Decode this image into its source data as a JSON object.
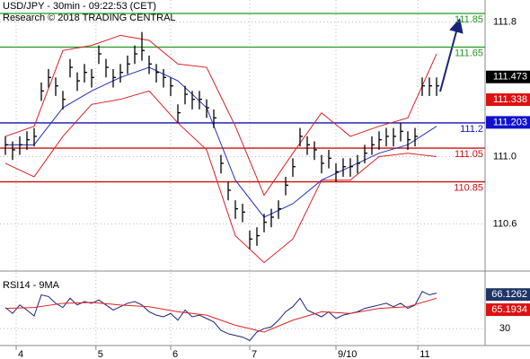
{
  "chart_data": [
    {
      "type": "ohlc",
      "title": "USD/JPY - 30min - 09:22:53 (CET)",
      "subtitle": "Research © 2018 TRADING CENTRAL",
      "color": "#000000",
      "x": [
        0,
        1,
        2,
        3,
        4,
        5,
        6,
        7,
        8,
        9,
        10,
        11,
        12,
        13,
        14,
        15,
        16,
        17,
        18,
        19,
        20,
        21,
        22,
        23,
        24,
        25,
        26,
        27,
        28,
        29,
        30,
        31,
        32,
        33,
        34,
        35,
        36,
        37,
        38,
        39,
        40,
        41,
        42,
        43,
        44,
        45,
        46,
        47,
        48,
        49,
        50,
        51,
        52,
        53,
        54,
        55,
        56,
        57,
        58,
        59,
        60
      ],
      "high": [
        111.12,
        111.09,
        111.12,
        111.15,
        111.17,
        111.44,
        111.52,
        111.47,
        111.39,
        111.58,
        111.5,
        111.55,
        111.52,
        111.66,
        111.58,
        111.52,
        111.55,
        111.6,
        111.66,
        111.74,
        111.6,
        111.55,
        111.52,
        111.47,
        111.31,
        111.42,
        111.39,
        111.39,
        111.34,
        111.28,
        111.01,
        110.85,
        110.74,
        110.72,
        110.56,
        110.58,
        110.66,
        110.69,
        110.74,
        110.88,
        110.99,
        111.17,
        111.12,
        111.09,
        111.01,
        111.04,
        110.96,
        110.99,
        110.99,
        111.01,
        111.07,
        111.12,
        111.15,
        111.17,
        111.17,
        111.2,
        111.15,
        111.17,
        111.47,
        111.47,
        111.47
      ],
      "low": [
        111.01,
        110.98,
        111.01,
        111.04,
        111.06,
        111.33,
        111.41,
        111.36,
        111.28,
        111.47,
        111.39,
        111.44,
        111.41,
        111.55,
        111.47,
        111.41,
        111.44,
        111.49,
        111.55,
        111.57,
        111.49,
        111.44,
        111.41,
        111.36,
        111.2,
        111.31,
        111.28,
        111.28,
        111.23,
        111.17,
        110.9,
        110.74,
        110.63,
        110.61,
        110.45,
        110.47,
        110.55,
        110.58,
        110.63,
        110.77,
        110.88,
        111.06,
        111.01,
        110.98,
        110.9,
        110.93,
        110.85,
        110.88,
        110.88,
        110.9,
        110.96,
        111.01,
        111.04,
        111.06,
        111.06,
        111.09,
        111.04,
        111.06,
        111.36,
        111.36,
        111.36
      ],
      "close": [
        111.07,
        111.04,
        111.07,
        111.1,
        111.12,
        111.39,
        111.47,
        111.42,
        111.34,
        111.53,
        111.45,
        111.5,
        111.47,
        111.61,
        111.53,
        111.47,
        111.5,
        111.55,
        111.61,
        111.63,
        111.55,
        111.5,
        111.47,
        111.42,
        111.26,
        111.37,
        111.34,
        111.34,
        111.29,
        111.23,
        110.96,
        110.8,
        110.69,
        110.67,
        110.51,
        110.53,
        110.61,
        110.64,
        110.69,
        110.83,
        110.94,
        111.12,
        111.07,
        111.04,
        110.96,
        110.99,
        110.91,
        110.94,
        110.94,
        110.96,
        111.02,
        111.07,
        111.1,
        111.12,
        111.12,
        111.15,
        111.1,
        111.12,
        111.42,
        111.42,
        111.42
      ],
      "overlays": [
        {
          "color": "#dd2222",
          "x": [
            0,
            4,
            8,
            12,
            16,
            20,
            24,
            28,
            32,
            36,
            40,
            44,
            48,
            52,
            56,
            60
          ],
          "values": [
            111.12,
            111.18,
            111.63,
            111.66,
            111.72,
            111.69,
            111.55,
            111.53,
            111.18,
            110.77,
            111.02,
            111.26,
            111.12,
            111.18,
            111.23,
            111.61
          ]
        },
        {
          "color": "#dd2222",
          "x": [
            0,
            4,
            8,
            12,
            16,
            20,
            24,
            28,
            32,
            36,
            40,
            44,
            48,
            52,
            56,
            60
          ],
          "values": [
            110.96,
            110.88,
            111.12,
            111.31,
            111.34,
            111.39,
            111.2,
            111.04,
            110.53,
            110.37,
            110.51,
            110.86,
            110.86,
            111.0,
            111.02,
            111.0
          ]
        },
        {
          "color": "#2233bb",
          "x": [
            0,
            4,
            8,
            12,
            16,
            20,
            24,
            28,
            32,
            36,
            40,
            44,
            48,
            52,
            56,
            60
          ],
          "values": [
            111.07,
            111.07,
            111.29,
            111.39,
            111.47,
            111.53,
            111.45,
            111.29,
            110.86,
            110.64,
            110.72,
            110.86,
            110.94,
            111.02,
            111.07,
            111.18
          ]
        }
      ],
      "levels": [
        {
          "value": 111.85,
          "color": "#229922"
        },
        {
          "value": 111.65,
          "color": "#229922"
        },
        {
          "value": 111.2,
          "color": "#1111bb"
        },
        {
          "value": 111.05,
          "color": "#cc1111"
        },
        {
          "value": 110.85,
          "color": "#cc1111"
        }
      ],
      "markers": [
        {
          "value": 111.473,
          "color": "#000000"
        },
        {
          "value": 111.338,
          "color": "#dd1111"
        },
        {
          "value": 111.203,
          "color": "#1111cc"
        }
      ],
      "ylim": [
        110.32,
        111.93
      ],
      "yticks": [
        110.6,
        {
          "value": 111,
          "label": "111.0"
        },
        111.8
      ],
      "xlim": [
        -0.75,
        66.75
      ],
      "xticks": [
        {
          "value": 1.5,
          "label": "4"
        },
        {
          "value": 12.6,
          "label": "5"
        },
        {
          "value": 23,
          "label": "6"
        },
        {
          "value": 34,
          "label": "7"
        },
        {
          "value": 46,
          "label": "9/10"
        },
        {
          "value": 57.4,
          "label": "11"
        }
      ],
      "grid": true
    },
    {
      "type": "line",
      "title": "RSI14 - 9MA",
      "x": [
        0,
        1,
        2,
        3,
        4,
        5,
        6,
        7,
        8,
        9,
        10,
        11,
        12,
        13,
        14,
        15,
        16,
        17,
        18,
        19,
        20,
        21,
        22,
        23,
        24,
        25,
        26,
        27,
        28,
        29,
        30,
        31,
        32,
        33,
        34,
        35,
        36,
        37,
        38,
        39,
        40,
        41,
        42,
        43,
        44,
        45,
        46,
        47,
        48,
        49,
        50,
        51,
        52,
        53,
        54,
        55,
        56,
        57,
        58,
        59,
        60
      ],
      "series": [
        {
          "color": "#1a237e",
          "values": [
            55,
            48,
            58,
            52,
            45,
            70,
            68,
            60,
            55,
            66,
            58,
            62,
            60,
            64,
            58,
            52,
            56,
            60,
            62,
            58,
            50,
            46,
            44,
            48,
            40,
            52,
            44,
            46,
            42,
            38,
            28,
            24,
            22,
            20,
            16,
            26,
            30,
            32,
            40,
            50,
            56,
            66,
            52,
            48,
            44,
            50,
            42,
            46,
            48,
            50,
            54,
            56,
            58,
            60,
            56,
            60,
            54,
            58,
            74,
            70,
            72
          ]
        },
        {
          "color": "#dd2222",
          "x": [
            0,
            4,
            8,
            12,
            16,
            20,
            24,
            28,
            32,
            36,
            40,
            44,
            48,
            52,
            56,
            60
          ],
          "values": [
            54,
            55,
            60,
            61,
            58,
            56,
            50,
            46,
            34,
            26,
            40,
            50,
            48,
            54,
            56,
            66
          ]
        }
      ],
      "markers": [
        {
          "value": 66.1262,
          "color": "#1f3566"
        },
        {
          "value": 65.1934,
          "color": "#dd1111"
        }
      ],
      "ylim": [
        10,
        95
      ],
      "yticks": [
        30
      ],
      "xlim": [
        -0.75,
        66.75
      ]
    }
  ]
}
